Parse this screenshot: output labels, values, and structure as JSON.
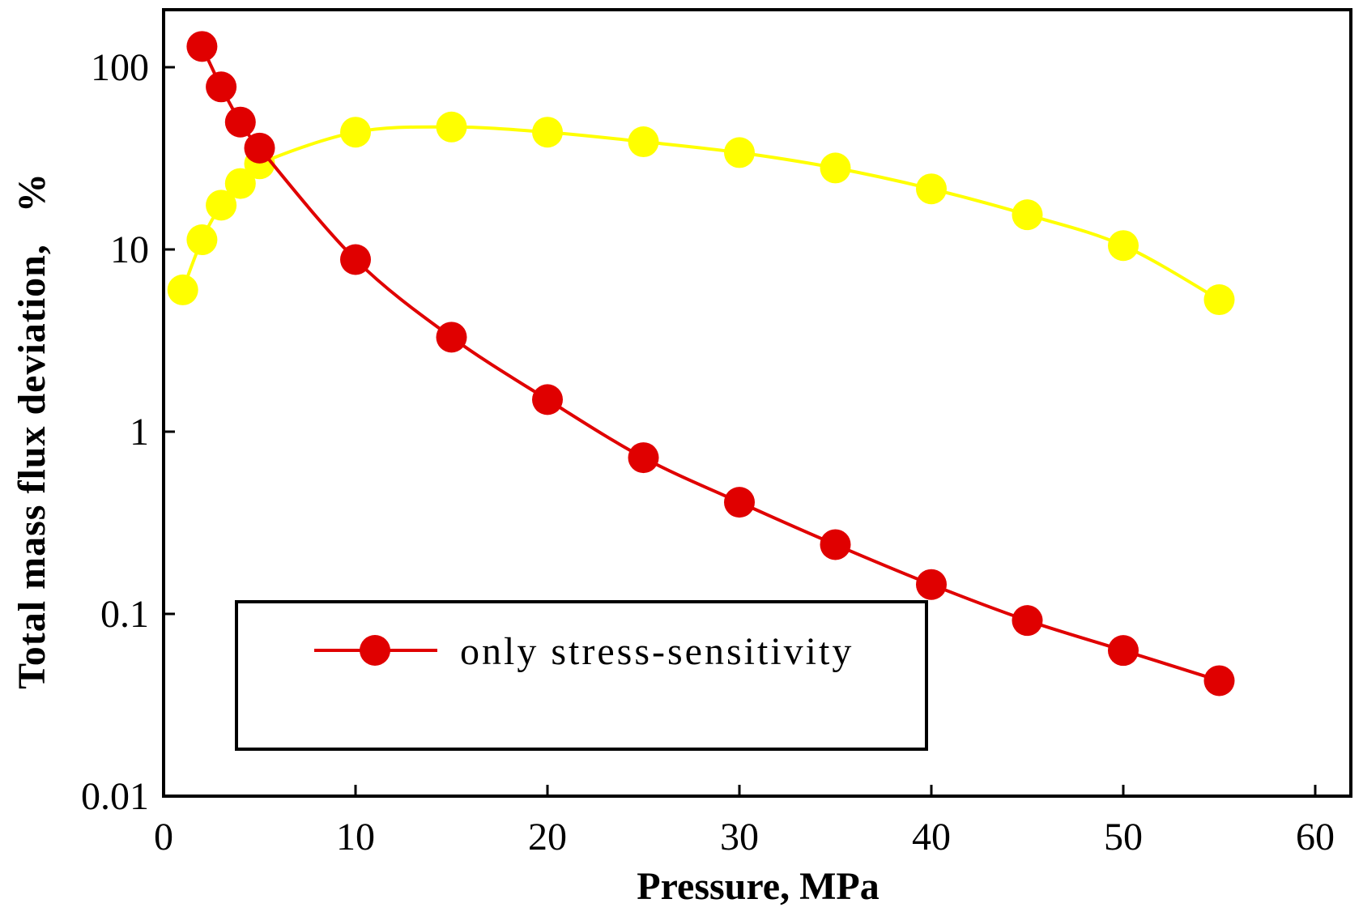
{
  "chart_data": {
    "type": "line",
    "xlabel": "Pressure, MPa",
    "ylabel": "Total mass flux deviation,   %",
    "xlim": [
      0,
      60
    ],
    "ylim": [
      0.01,
      200
    ],
    "yscale": "log",
    "x_ticks": [
      0,
      10,
      20,
      30,
      40,
      50,
      60
    ],
    "y_ticks": [
      0.01,
      0.1,
      1,
      10,
      100
    ],
    "x_tick_labels": [
      "0",
      "10",
      "20",
      "30",
      "40",
      "50",
      "60"
    ],
    "y_tick_labels": [
      "0.01",
      "0.1",
      "1",
      "10",
      "100"
    ],
    "grid": false,
    "legend_position": "lower-left",
    "series": [
      {
        "name": "only stress-sensitivity",
        "color": "#e00000",
        "in_legend": true,
        "x": [
          2,
          3,
          4,
          5,
          10,
          15,
          20,
          25,
          30,
          35,
          40,
          45,
          50,
          55
        ],
        "values": [
          130,
          78,
          50,
          36,
          8.8,
          3.3,
          1.5,
          0.72,
          0.41,
          0.24,
          0.145,
          0.092,
          0.063,
          0.043
        ]
      },
      {
        "name": "",
        "color": "#ffff00",
        "in_legend": false,
        "x": [
          1,
          2,
          3,
          4,
          5,
          10,
          15,
          20,
          25,
          30,
          35,
          40,
          45,
          50,
          55
        ],
        "values": [
          6,
          11.3,
          17.5,
          23,
          29.5,
          44,
          47,
          44,
          39,
          34,
          28,
          21.5,
          15.5,
          10.5,
          5.3
        ]
      }
    ]
  }
}
